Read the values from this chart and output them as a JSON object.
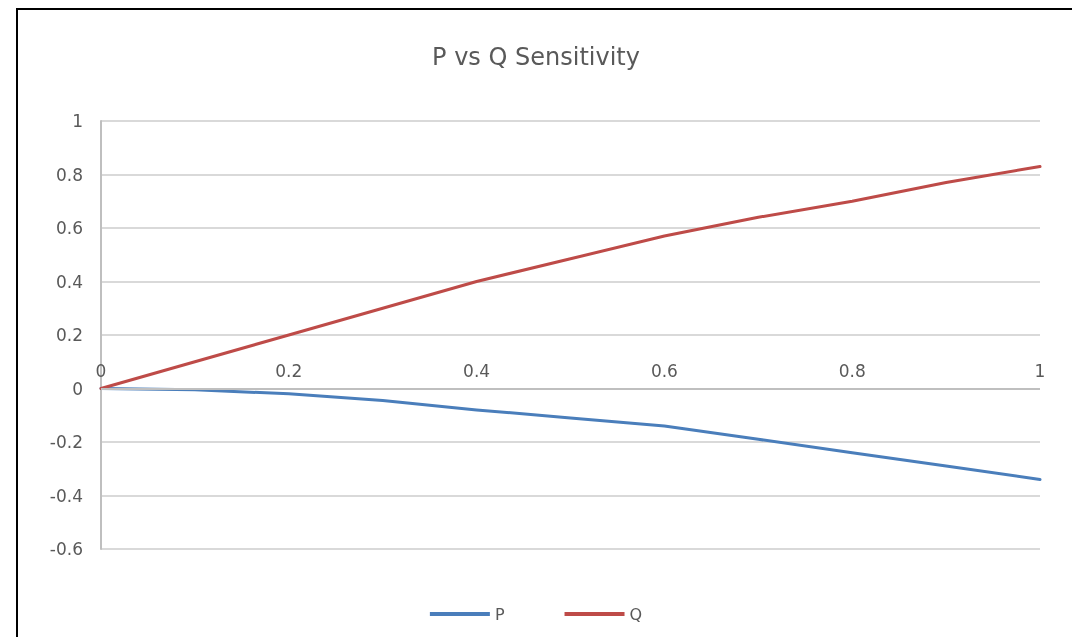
{
  "chart_data": {
    "type": "line",
    "title": "P vs Q Sensitivity",
    "x": [
      0,
      0.1,
      0.2,
      0.3,
      0.4,
      0.5,
      0.6,
      0.7,
      0.8,
      0.9,
      1
    ],
    "series": [
      {
        "name": "P",
        "color": "#4a7ebb",
        "values": [
          0,
          -0.005,
          -0.02,
          -0.045,
          -0.08,
          -0.11,
          -0.14,
          -0.19,
          -0.24,
          -0.29,
          -0.34
        ]
      },
      {
        "name": "Q",
        "color": "#be4b48",
        "values": [
          0,
          0.1,
          0.2,
          0.3,
          0.4,
          0.485,
          0.57,
          0.64,
          0.7,
          0.77,
          0.83
        ]
      }
    ],
    "xlim": [
      0,
      1
    ],
    "xticks": [
      0,
      0.2,
      0.4,
      0.6,
      0.8,
      1
    ],
    "ylim": [
      -0.6,
      1
    ],
    "yticks": [
      -0.6,
      -0.4,
      -0.2,
      0,
      0.2,
      0.4,
      0.6,
      0.8,
      1
    ],
    "grid": "y",
    "legend": "bottom",
    "marker": "none",
    "line_style": "solid"
  }
}
